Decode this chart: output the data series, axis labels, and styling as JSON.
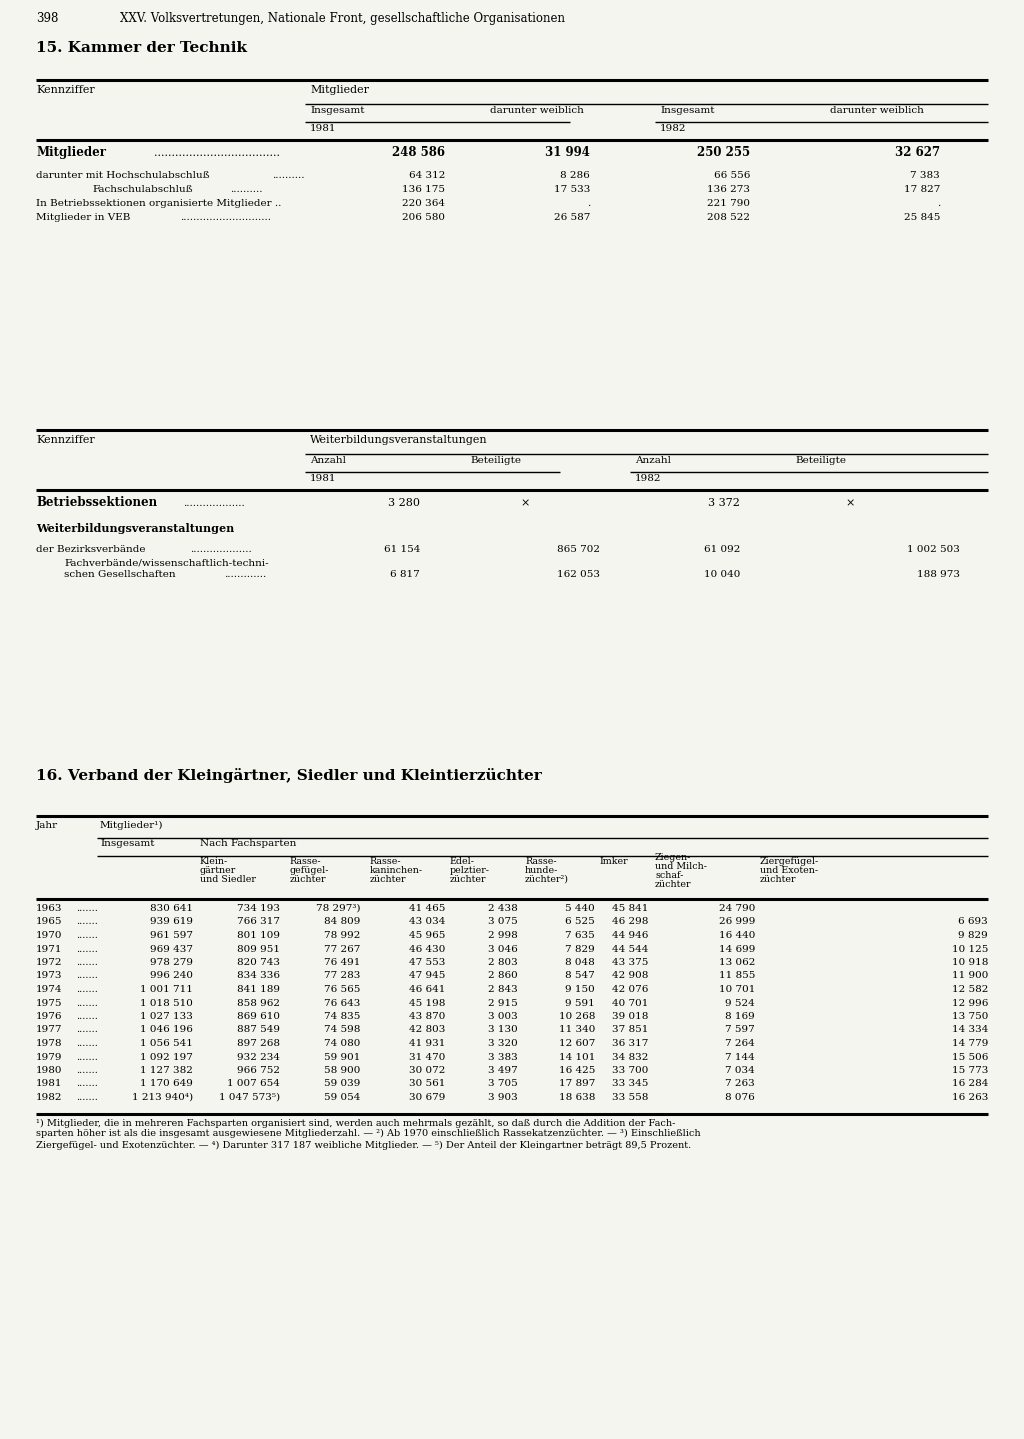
{
  "page_number": "398",
  "header": "XXV. Volksvertretungen, Nationale Front, gesellschaftliche Organisationen",
  "section15_title": "15. Kammer der Technik",
  "section16_title": "16. Verband der Kleingärtner, Siedler und Kleintierzüchter",
  "table3_rows": [
    [
      "1963",
      "830 641",
      "734 193",
      "78 297³)",
      "41 465",
      "2 438",
      "5 440",
      "45 841",
      "24 790",
      ""
    ],
    [
      "1965",
      "939 619",
      "766 317",
      "84 809",
      "43 034",
      "3 075",
      "6 525",
      "46 298",
      "26 999",
      "6 693"
    ],
    [
      "1970",
      "961 597",
      "801 109",
      "78 992",
      "45 965",
      "2 998",
      "7 635",
      "44 946",
      "16 440",
      "9 829"
    ],
    [
      "1971",
      "969 437",
      "809 951",
      "77 267",
      "46 430",
      "3 046",
      "7 829",
      "44 544",
      "14 699",
      "10 125"
    ],
    [
      "1972",
      "978 279",
      "820 743",
      "76 491",
      "47 553",
      "2 803",
      "8 048",
      "43 375",
      "13 062",
      "10 918"
    ],
    [
      "1973",
      "996 240",
      "834 336",
      "77 283",
      "47 945",
      "2 860",
      "8 547",
      "42 908",
      "11 855",
      "11 900"
    ],
    [
      "1974",
      "1 001 711",
      "841 189",
      "76 565",
      "46 641",
      "2 843",
      "9 150",
      "42 076",
      "10 701",
      "12 582"
    ],
    [
      "1975",
      "1 018 510",
      "858 962",
      "76 643",
      "45 198",
      "2 915",
      "9 591",
      "40 701",
      "9 524",
      "12 996"
    ],
    [
      "1976",
      "1 027 133",
      "869 610",
      "74 835",
      "43 870",
      "3 003",
      "10 268",
      "39 018",
      "8 169",
      "13 750"
    ],
    [
      "1977",
      "1 046 196",
      "887 549",
      "74 598",
      "42 803",
      "3 130",
      "11 340",
      "37 851",
      "7 597",
      "14 334"
    ],
    [
      "1978",
      "1 056 541",
      "897 268",
      "74 080",
      "41 931",
      "3 320",
      "12 607",
      "36 317",
      "7 264",
      "14 779"
    ],
    [
      "1979",
      "1 092 197",
      "932 234",
      "59 901",
      "31 470",
      "3 383",
      "14 101",
      "34 832",
      "7 144",
      "15 506"
    ],
    [
      "1980",
      "1 127 382",
      "966 752",
      "58 900",
      "30 072",
      "3 497",
      "16 425",
      "33 700",
      "7 034",
      "15 773"
    ],
    [
      "1981",
      "1 170 649",
      "1 007 654",
      "59 039",
      "30 561",
      "3 705",
      "17 897",
      "33 345",
      "7 263",
      "16 284"
    ],
    [
      "1982",
      "1 213 940⁴)",
      "1 047 573⁵)",
      "59 054",
      "30 679",
      "3 903",
      "18 638",
      "33 558",
      "8 076",
      "16 263"
    ]
  ],
  "footnotes": [
    "¹) Mitglieder, die in mehreren Fachsparten organisiert sind, werden auch mehrmals gezählt, so daß durch die Addition der Fach-",
    "sparten höher ist als die insgesamt ausgewiesene Mitgliederzahl. — ²) Ab 1970 einschließlich Rassekatzenzüchter. — ³) Einschließlich",
    "Ziergefügel- und Exotenzüchter. — ⁴) Darunter 317 187 weibliche Mitglieder. — ⁵) Der Anteil der Kleingartner beträgt 89,5 Prozent."
  ],
  "bg_color": "#f5f5f0",
  "text_color": "#000000"
}
